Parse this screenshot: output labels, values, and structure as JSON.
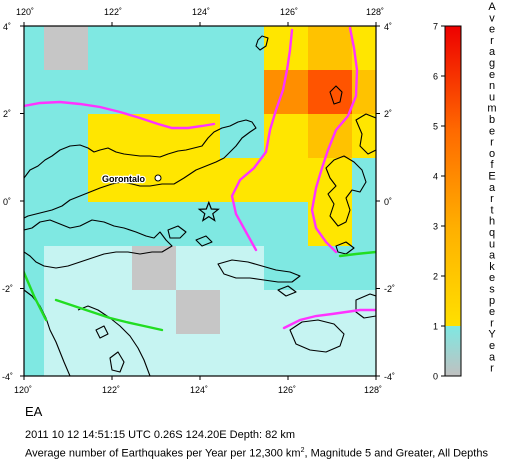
{
  "map": {
    "lon_ticks": [
      "120˚",
      "122˚",
      "124˚",
      "126˚",
      "128˚"
    ],
    "lat_ticks": [
      "4˚",
      "2˚",
      "0˚",
      "-2˚",
      "-4˚"
    ],
    "extent": {
      "lon": [
        120,
        128
      ],
      "lat": [
        -4,
        4
      ]
    },
    "city_label": "Gorontalo",
    "epicenter": {
      "lon": 124.2,
      "lat": -0.26
    },
    "colors": {
      "ocean_cyan": "#7fe8e2",
      "light_cyan": "#c6f4f2",
      "gray": "#c6c6c6",
      "yellow": "#ffe600",
      "gold": "#ffc200",
      "orange": "#ff8e00",
      "orange_red": "#ff5400",
      "red_orange": "#ff3a00",
      "plate_boundary_magenta": "#ff33ff",
      "fault_green": "#22dd22"
    },
    "grid_rows": [
      [
        "cyan",
        "gray",
        "cyan",
        "cyan",
        "cyan",
        "cyan",
        "yellow",
        "gold",
        "yellow"
      ],
      [
        "cyan",
        "cyan",
        "cyan",
        "cyan",
        "cyan",
        "cyan",
        "orange",
        "orange_red",
        "gold"
      ],
      [
        "cyan",
        "cyan",
        "yellow",
        "yellow",
        "yellow",
        "cyan",
        "yellow",
        "gold",
        "yellow"
      ],
      [
        "cyan",
        "cyan",
        "yellow",
        "yellow",
        "yellow",
        "yellow",
        "yellow",
        "yellow",
        "cyan"
      ],
      [
        "cyan",
        "cyan",
        "cyan",
        "cyan",
        "cyan",
        "cyan",
        "cyan",
        "yellow",
        "cyan"
      ],
      [
        "cyan",
        "light",
        "light",
        "gray",
        "light",
        "light",
        "cyan",
        "cyan",
        "cyan"
      ],
      [
        "cyan",
        "light",
        "light",
        "light",
        "gray",
        "light",
        "light",
        "light",
        "light"
      ],
      [
        "cyan",
        "light",
        "light",
        "light",
        "light",
        "light",
        "light",
        "light",
        "light"
      ]
    ]
  },
  "legend": {
    "ticks": [
      "0",
      "1",
      "2",
      "3",
      "4",
      "5",
      "6",
      "7"
    ],
    "letters": "Average number of Earthquakes per Year",
    "bands": [
      {
        "from": 0,
        "to": 1,
        "color": "#7fe8e2"
      },
      {
        "from": 1,
        "to": 2,
        "color": "#ffd400"
      },
      {
        "from": 2,
        "to": 3,
        "color": "#ffb000"
      },
      {
        "from": 3,
        "to": 4,
        "color": "#ff8a00"
      },
      {
        "from": 4,
        "to": 5,
        "color": "#ff6a00"
      },
      {
        "from": 5,
        "to": 6,
        "color": "#ff4400"
      },
      {
        "from": 6,
        "to": 7,
        "color": "#ee1100"
      }
    ]
  },
  "region_code": "EA",
  "event_line": "2011 10 12 14:51:15 UTC 0.26S 124.20E Depth: 82 km",
  "caption": {
    "prefix": "Average number of Earthquakes per Year per 12,300 km",
    "superscript": "2",
    "suffix": ", Magnitude 5 and Greater, All Depths"
  }
}
